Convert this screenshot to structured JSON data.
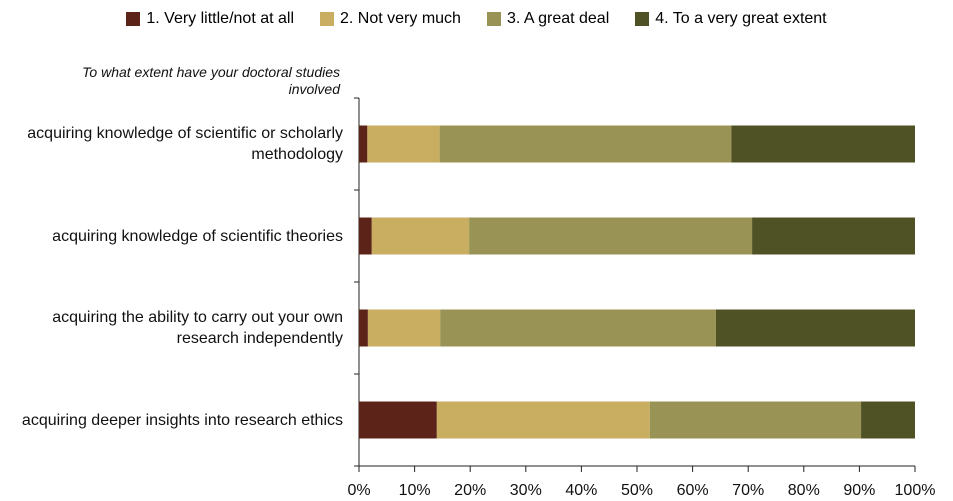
{
  "chart_data": {
    "type": "stacked_bar_horizontal",
    "y_axis_title": "To what extent have your doctoral studies involved",
    "categories": [
      "acquiring knowledge of scientific or scholarly methodology",
      "acquiring knowledge of scientific theories",
      "acquiring the ability to carry out your own research independently",
      "acquiring deeper insights into research ethics"
    ],
    "series": [
      {
        "name": "1. Very little/not at all",
        "color": "#5c2418",
        "values": [
          1.5,
          2.3,
          1.6,
          14
        ]
      },
      {
        "name": "2. Not very much",
        "color": "#c9ad60",
        "values": [
          13,
          17.5,
          13,
          38.3
        ]
      },
      {
        "name": "3. A great deal",
        "color": "#999456",
        "values": [
          52.5,
          50.9,
          49.6,
          38
        ]
      },
      {
        "name": "4. To a very great extent",
        "color": "#4f5225",
        "values": [
          33,
          29.3,
          35.8,
          9.7
        ]
      }
    ],
    "xlim": [
      0,
      100
    ],
    "xticks": [
      {
        "value": 0,
        "label": "0%"
      },
      {
        "value": 10,
        "label": "10%"
      },
      {
        "value": 20,
        "label": "20%"
      },
      {
        "value": 30,
        "label": "30%"
      },
      {
        "value": 40,
        "label": "40%"
      },
      {
        "value": 50,
        "label": "50%"
      },
      {
        "value": 60,
        "label": "60%"
      },
      {
        "value": 70,
        "label": "70%"
      },
      {
        "value": 80,
        "label": "80%"
      },
      {
        "value": 90,
        "label": "90%"
      },
      {
        "value": 100,
        "label": "100%"
      }
    ],
    "legend": "top"
  }
}
